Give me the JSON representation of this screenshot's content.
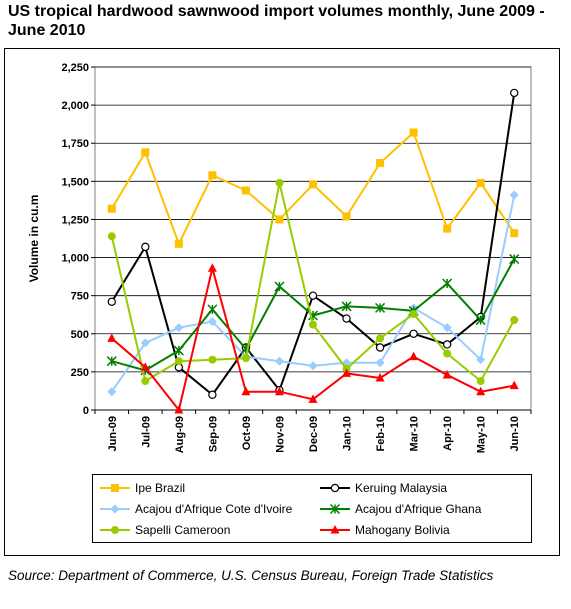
{
  "title": "US tropical hardwood sawnwood import volumes monthly, June 2009 - June 2010",
  "source": "Source: Department of Commerce, U.S. Census Bureau, Foreign Trade Statistics",
  "chart_data": {
    "type": "line",
    "title": "US tropical hardwood sawnwood import volumes monthly, June 2009 - June 2010",
    "xlabel": "",
    "ylabel": "Volume in cu.m",
    "ylim": [
      0,
      2250
    ],
    "yticks": [
      "0",
      "250",
      "500",
      "750",
      "1,000",
      "1,250",
      "1,500",
      "1,750",
      "2,000",
      "2,250"
    ],
    "categories": [
      "Jun-09",
      "Jul-09",
      "Aug-09",
      "Sep-09",
      "Oct-09",
      "Nov-09",
      "Dec-09",
      "Jan-10",
      "Feb-10",
      "Mar-10",
      "Apr-10",
      "May-10",
      "Jun-10"
    ],
    "grid": true,
    "legend_position": "bottom",
    "series": [
      {
        "name": "Ipe Brazil",
        "color": "#FFC000",
        "marker": "square",
        "values": [
          1320,
          1690,
          1090,
          1540,
          1440,
          1250,
          1480,
          1270,
          1620,
          1820,
          1190,
          1490,
          1160
        ]
      },
      {
        "name": "Keruing Malaysia",
        "color": "#000000",
        "marker": "circle-open",
        "values": [
          710,
          1070,
          280,
          100,
          410,
          130,
          750,
          600,
          410,
          500,
          430,
          610,
          2080
        ]
      },
      {
        "name": "Acajou d'Afrique Cote d'Ivoire",
        "color": "#99CCFF",
        "marker": "diamond",
        "values": [
          120,
          440,
          540,
          580,
          350,
          320,
          290,
          310,
          310,
          670,
          540,
          330,
          1410
        ]
      },
      {
        "name": "Acajou d'Afrique Ghana",
        "color": "#008000",
        "marker": "star",
        "values": [
          320,
          260,
          390,
          660,
          400,
          810,
          620,
          680,
          670,
          650,
          830,
          590,
          990
        ]
      },
      {
        "name": "Sapelli Cameroon",
        "color": "#99CC00",
        "marker": "circle",
        "values": [
          1140,
          190,
          320,
          330,
          340,
          1490,
          560,
          270,
          470,
          630,
          370,
          190,
          590
        ]
      },
      {
        "name": "Mahogany Bolivia",
        "color": "#FF0000",
        "marker": "triangle",
        "values": [
          470,
          280,
          0,
          930,
          120,
          120,
          70,
          240,
          210,
          350,
          230,
          120,
          160
        ]
      }
    ]
  }
}
